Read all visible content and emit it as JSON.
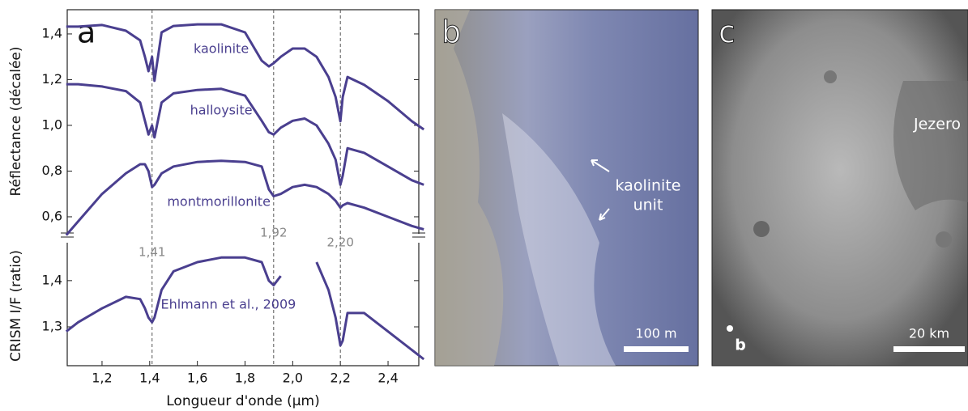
{
  "chart_data": {
    "type": "line",
    "panel_letter": "a",
    "x_label": "Longueur d'onde (µm)",
    "y_label": "Réflectance (décalée)",
    "y2_label": "CRISM I/F (ratio)",
    "x": [
      1.05,
      1.1,
      1.2,
      1.3,
      1.36,
      1.38,
      1.395,
      1.41,
      1.42,
      1.45,
      1.5,
      1.6,
      1.7,
      1.8,
      1.87,
      1.9,
      1.92,
      1.95,
      2.0,
      2.05,
      2.1,
      2.15,
      2.18,
      2.2,
      2.21,
      2.23,
      2.3,
      2.4,
      2.5,
      2.55
    ],
    "series": [
      {
        "name": "kaolinite",
        "color": "#4a3f8f",
        "values": [
          1.432,
          1.432,
          1.439,
          1.414,
          1.372,
          1.3,
          1.237,
          1.3,
          1.195,
          1.407,
          1.435,
          1.442,
          1.442,
          1.407,
          1.283,
          1.258,
          1.272,
          1.3,
          1.336,
          1.336,
          1.3,
          1.212,
          1.124,
          1.018,
          1.124,
          1.212,
          1.177,
          1.106,
          1.018,
          0.982
        ]
      },
      {
        "name": "halloysite",
        "color": "#4a3f8f",
        "values": [
          1.18,
          1.18,
          1.17,
          1.15,
          1.1,
          1.02,
          0.96,
          1.0,
          0.947,
          1.1,
          1.14,
          1.155,
          1.16,
          1.13,
          1.02,
          0.97,
          0.96,
          0.99,
          1.02,
          1.03,
          1.0,
          0.92,
          0.85,
          0.74,
          0.78,
          0.9,
          0.88,
          0.82,
          0.76,
          0.74
        ]
      },
      {
        "name": "montmorillonite",
        "color": "#4a3f8f",
        "values": [
          0.52,
          0.58,
          0.7,
          0.79,
          0.83,
          0.83,
          0.8,
          0.73,
          0.74,
          0.79,
          0.82,
          0.84,
          0.845,
          0.84,
          0.82,
          0.72,
          0.69,
          0.7,
          0.73,
          0.74,
          0.73,
          0.7,
          0.67,
          0.64,
          0.65,
          0.66,
          0.64,
          0.6,
          0.56,
          0.545
        ]
      },
      {
        "name": "Ehlmann et al., 2009",
        "color": "#4a3f8f",
        "axis": "y2",
        "values": [
          1.29,
          1.31,
          1.34,
          1.365,
          1.36,
          1.34,
          1.32,
          1.31,
          1.32,
          1.38,
          1.42,
          1.44,
          1.45,
          1.45,
          1.44,
          1.4,
          1.39,
          1.41,
          null,
          null,
          1.44,
          1.38,
          1.32,
          1.26,
          1.27,
          1.33,
          1.33,
          1.29,
          1.25,
          1.23
        ]
      }
    ],
    "xlim": [
      1.054,
      2.529
    ],
    "xticks": [
      {
        "value": 1.2,
        "label": "1,2"
      },
      {
        "value": 1.4,
        "label": "1,4"
      },
      {
        "value": 1.6,
        "label": "1,6"
      },
      {
        "value": 1.8,
        "label": "1,8"
      },
      {
        "value": 2.0,
        "label": "2,0"
      },
      {
        "value": 2.2,
        "label": "2,2"
      },
      {
        "value": 2.4,
        "label": "2,4"
      }
    ],
    "ylim": [
      0.522,
      1.506
    ],
    "yticks": [
      {
        "value": 0.6,
        "label": "0,6"
      },
      {
        "value": 0.8,
        "label": "0,8"
      },
      {
        "value": 1.0,
        "label": "1,0"
      },
      {
        "value": 1.2,
        "label": "1,2"
      },
      {
        "value": 1.4,
        "label": "1,4"
      }
    ],
    "y2lim": [
      1.216,
      1.482
    ],
    "y2ticks": [
      {
        "value": 1.3,
        "label": "1,3"
      },
      {
        "value": 1.4,
        "label": "1,4"
      }
    ],
    "vlines": [
      {
        "value": 1.41,
        "label": "1,41"
      },
      {
        "value": 1.92,
        "label": "1,92"
      },
      {
        "value": 2.2,
        "label": "2,20"
      }
    ]
  },
  "panel_b": {
    "letter": "b",
    "annotation": [
      "kaolinite",
      "unit"
    ],
    "scale_label": "100 m"
  },
  "panel_c": {
    "letter": "c",
    "place_label": "Jezero",
    "marker_label": "b",
    "scale_label": "20 km"
  }
}
